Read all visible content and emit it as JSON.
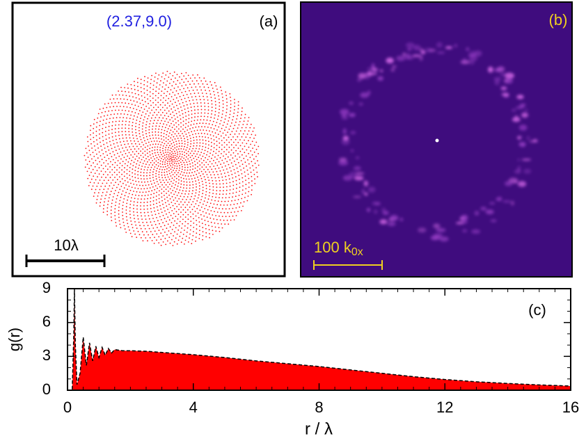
{
  "panel_a": {
    "parameters": "(2.37,9.0)",
    "label": "(a)",
    "scale_bar": "10λ"
  },
  "panel_b": {
    "label": "(b)",
    "scale_bar": "100 k",
    "scale_bar_subscript": "0x"
  },
  "chart_data": {
    "type": "area",
    "label": "(c)",
    "x_label": "r / λ",
    "y_label": "g(r)",
    "x": [
      0,
      0.15,
      0.2,
      0.22,
      0.25,
      0.3,
      0.4,
      0.5,
      0.6,
      0.7,
      0.8,
      0.9,
      1.0,
      1.1,
      1.2,
      1.3,
      1.4,
      1.5,
      1.75,
      2,
      2.5,
      3,
      3.5,
      4,
      5,
      6,
      7,
      8,
      9,
      10,
      11,
      12,
      13,
      14,
      15,
      16
    ],
    "values": [
      0,
      0,
      5,
      9,
      4,
      0.5,
      1.5,
      4.7,
      2.2,
      4.2,
      2.6,
      3.9,
      2.9,
      3.8,
      3.1,
      3.7,
      3.3,
      3.6,
      3.5,
      3.5,
      3.45,
      3.35,
      3.25,
      3.15,
      2.9,
      2.6,
      2.35,
      2.1,
      1.8,
      1.5,
      1.2,
      0.95,
      0.75,
      0.6,
      0.47,
      0.37
    ],
    "color": "#ff0000",
    "line_color": "#000000",
    "xlim": [
      0,
      16
    ],
    "xticks": [
      0,
      4,
      8,
      12,
      16
    ],
    "ylim": [
      0,
      9
    ],
    "yticks": [
      0,
      3,
      6,
      9
    ],
    "grid": false
  }
}
